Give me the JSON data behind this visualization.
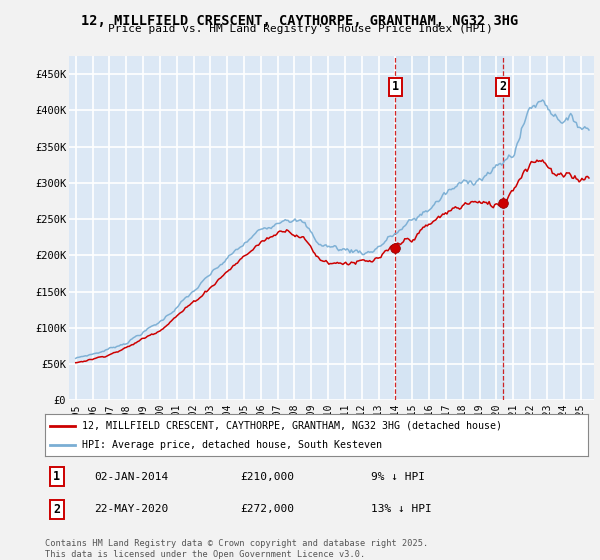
{
  "title": "12, MILLFIELD CRESCENT, CAYTHORPE, GRANTHAM, NG32 3HG",
  "subtitle": "Price paid vs. HM Land Registry's House Price Index (HPI)",
  "legend_line1": "12, MILLFIELD CRESCENT, CAYTHORPE, GRANTHAM, NG32 3HG (detached house)",
  "legend_line2": "HPI: Average price, detached house, South Kesteven",
  "annotation1_label": "1",
  "annotation1_date": "02-JAN-2014",
  "annotation1_price": "£210,000",
  "annotation1_hpi": "9% ↓ HPI",
  "annotation2_label": "2",
  "annotation2_date": "22-MAY-2020",
  "annotation2_price": "£272,000",
  "annotation2_hpi": "13% ↓ HPI",
  "copyright": "Contains HM Land Registry data © Crown copyright and database right 2025.\nThis data is licensed under the Open Government Licence v3.0.",
  "ylim": [
    0,
    475000
  ],
  "yticks": [
    0,
    50000,
    100000,
    150000,
    200000,
    250000,
    300000,
    350000,
    400000,
    450000
  ],
  "ytick_labels": [
    "£0",
    "£50K",
    "£100K",
    "£150K",
    "£200K",
    "£250K",
    "£300K",
    "£350K",
    "£400K",
    "£450K"
  ],
  "background_color": "#dce8f5",
  "fig_bg_color": "#f2f2f2",
  "grid_color": "#ffffff",
  "red_line_color": "#cc0000",
  "blue_line_color": "#7aaed4",
  "vline_color": "#cc0000",
  "sale1_x": 2014.0,
  "sale1_y": 210000,
  "sale2_x": 2020.37,
  "sale2_y": 272000,
  "xlim_left": 1994.6,
  "xlim_right": 2025.8
}
